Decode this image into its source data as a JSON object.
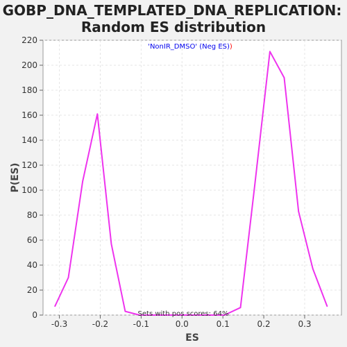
{
  "chart_data": {
    "type": "line",
    "title_line1": "GOBP_DNA_TEMPLATED_DNA_REPLICATION:",
    "title_line2": "Random ES distribution",
    "xlabel": "ES",
    "ylabel": "P(ES)",
    "xlim": [
      -0.34,
      0.39
    ],
    "ylim": [
      0,
      220
    ],
    "x_ticks": [
      -0.3,
      -0.2,
      -0.1,
      0.0,
      0.1,
      0.2,
      0.3
    ],
    "x_tick_labels": [
      "-0.3",
      "-0.2",
      "-0.1",
      "0.0",
      "0.1",
      "0.2",
      "0.3"
    ],
    "y_ticks": [
      0,
      20,
      40,
      60,
      80,
      100,
      120,
      140,
      160,
      180,
      200,
      220
    ],
    "y_tick_labels": [
      "0",
      "20",
      "40",
      "60",
      "80",
      "100",
      "120",
      "140",
      "160",
      "180",
      "200",
      "220"
    ],
    "grid": true,
    "legend": {
      "placement": "top-center",
      "text_main": "'NonIR_DMSO' (Neg ES)",
      "text_suffix": ")",
      "main_color": "#0000ee",
      "suffix_color": "#ff0000"
    },
    "annotation": "Sets with pos scores: 64%",
    "series": [
      {
        "color": "#ee33ee",
        "x": [
          -0.311,
          -0.278,
          -0.243,
          -0.207,
          -0.173,
          -0.139,
          -0.104,
          -0.07,
          -0.035,
          0.0,
          0.035,
          0.07,
          0.104,
          0.143,
          0.178,
          0.215,
          0.25,
          0.285,
          0.32,
          0.355
        ],
        "y": [
          7,
          30,
          107,
          161,
          57,
          3,
          0,
          0,
          0,
          0,
          0,
          0,
          0,
          6,
          104,
          211,
          190,
          83,
          37,
          7
        ]
      }
    ]
  }
}
